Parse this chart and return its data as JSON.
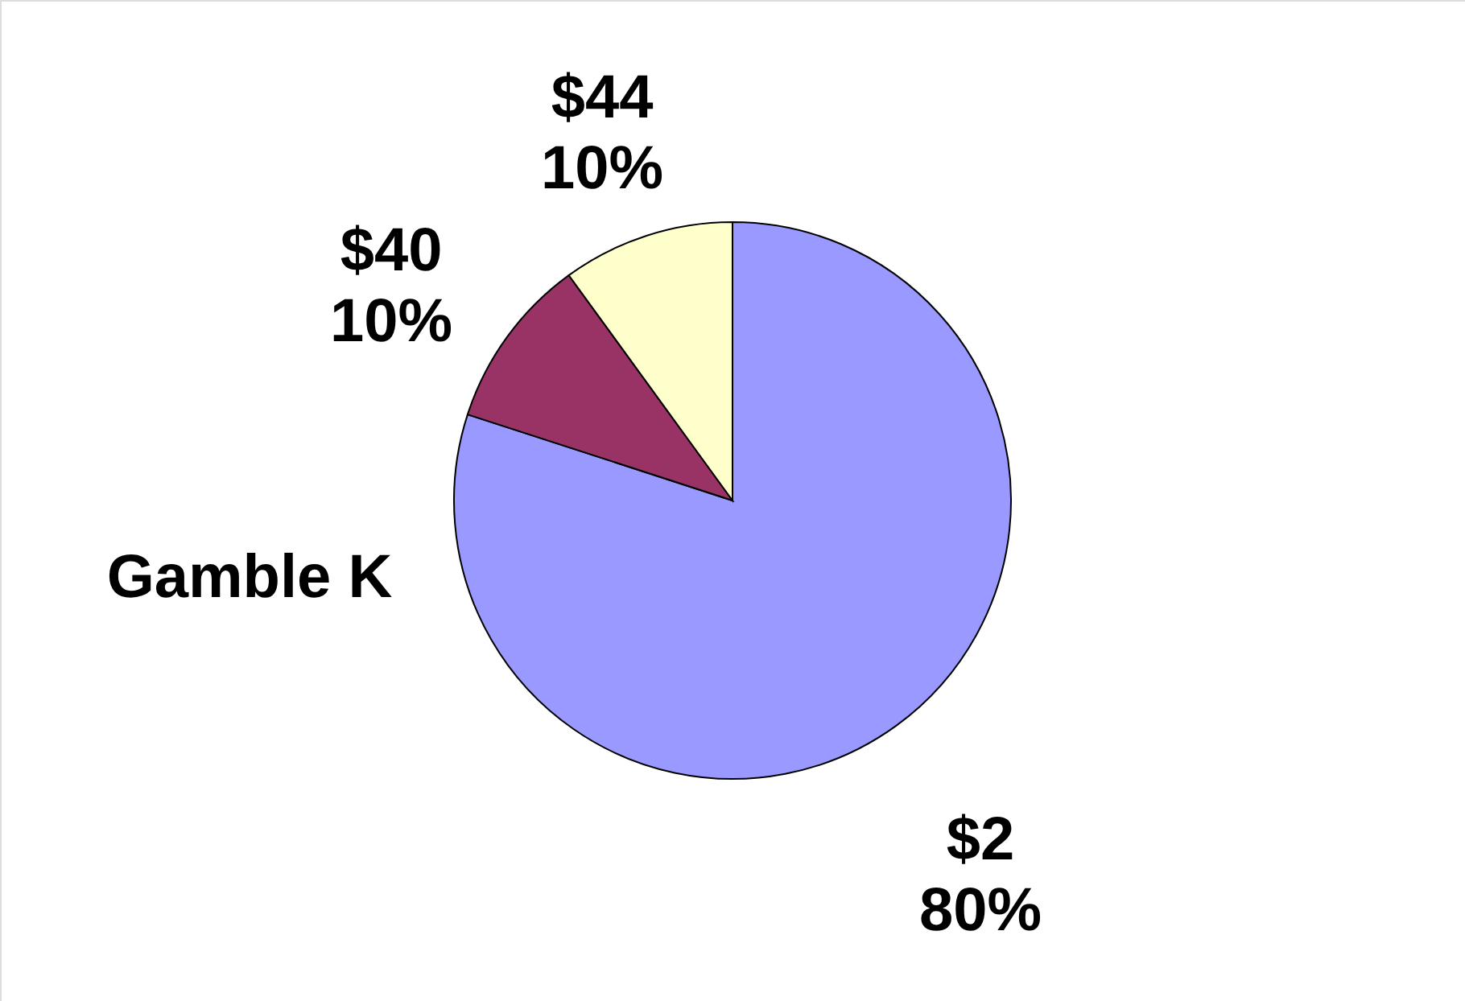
{
  "chart_data": {
    "type": "pie",
    "title": "Gamble K",
    "categories": [
      "$2",
      "$40",
      "$44"
    ],
    "values": [
      80,
      10,
      10
    ],
    "value_labels": [
      "80%",
      "10%",
      "10%"
    ],
    "colors": [
      "#9999ff",
      "#993366",
      "#ffffcc"
    ]
  }
}
